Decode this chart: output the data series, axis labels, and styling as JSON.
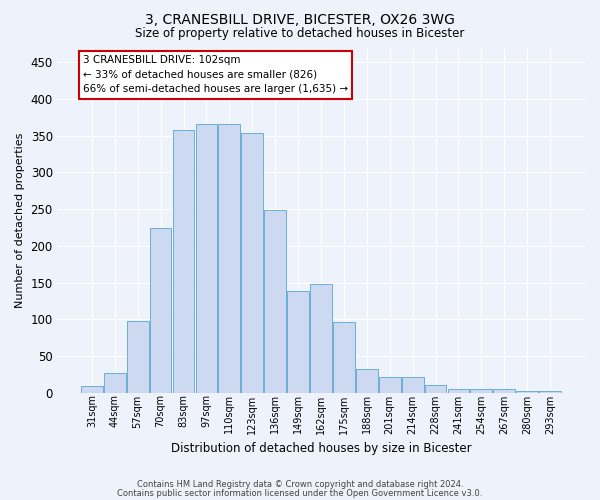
{
  "title1": "3, CRANESBILL DRIVE, BICESTER, OX26 3WG",
  "title2": "Size of property relative to detached houses in Bicester",
  "xlabel": "Distribution of detached houses by size in Bicester",
  "ylabel": "Number of detached properties",
  "categories": [
    "31sqm",
    "44sqm",
    "57sqm",
    "70sqm",
    "83sqm",
    "97sqm",
    "110sqm",
    "123sqm",
    "136sqm",
    "149sqm",
    "162sqm",
    "175sqm",
    "188sqm",
    "201sqm",
    "214sqm",
    "228sqm",
    "241sqm",
    "254sqm",
    "267sqm",
    "280sqm",
    "293sqm"
  ],
  "values": [
    10,
    27,
    98,
    224,
    358,
    366,
    366,
    354,
    249,
    138,
    148,
    96,
    32,
    22,
    22,
    11,
    5,
    5,
    5,
    3,
    3
  ],
  "bar_color": "#ccd9f0",
  "bar_edge_color": "#6baed6",
  "annotation_box_text": "3 CRANESBILL DRIVE: 102sqm\n← 33% of detached houses are smaller (826)\n66% of semi-detached houses are larger (1,635) →",
  "annotation_box_color": "#ffffff",
  "annotation_box_edge_color": "#cc0000",
  "footer1": "Contains HM Land Registry data © Crown copyright and database right 2024.",
  "footer2": "Contains public sector information licensed under the Open Government Licence v3.0.",
  "ylim": [
    0,
    470
  ],
  "yticks": [
    0,
    50,
    100,
    150,
    200,
    250,
    300,
    350,
    400,
    450
  ],
  "bg_color": "#eef2fa",
  "grid_color": "#ffffff",
  "title1_fontsize": 10,
  "title2_fontsize": 8.5,
  "xlabel_fontsize": 8.5,
  "ylabel_fontsize": 8,
  "tick_fontsize": 8.5,
  "xtick_fontsize": 7
}
